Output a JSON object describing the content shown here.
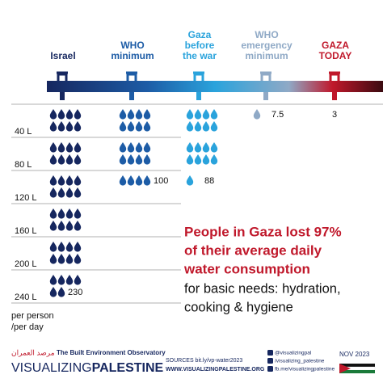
{
  "chart_data": {
    "type": "pictogram",
    "categories": [
      [
        "Israel"
      ],
      [
        "WHO",
        "minimum"
      ],
      [
        "Gaza",
        "before",
        "the war"
      ],
      [
        "WHO",
        "emergency",
        "minimum"
      ],
      [
        "GAZA",
        "TODAY"
      ]
    ],
    "values": [
      230,
      100,
      88,
      7.5,
      3
    ],
    "colors": [
      "#16275f",
      "#1d5ca6",
      "#2aa3dc",
      "#8fa9c6",
      "#c0182b"
    ],
    "ylim": [
      0,
      240
    ],
    "yticks": [
      {
        "value": 40,
        "label": "40 L"
      },
      {
        "value": 80,
        "label": "80 L"
      },
      {
        "value": 120,
        "label": "120 L"
      },
      {
        "value": 160,
        "label": "160 L"
      },
      {
        "value": 200,
        "label": "200 L"
      },
      {
        "value": 240,
        "label": "240 L"
      }
    ],
    "ylabel": [
      "per person",
      "/per day"
    ],
    "grid": true
  },
  "headline": {
    "highlight": [
      "People in Gaza lost 97%",
      "of their average daily",
      "water consumption"
    ],
    "body": [
      "for basic needs: hydration,",
      "cooking & hygiene"
    ]
  },
  "footer": {
    "arabic": "مرصد العمران",
    "observatory": "The Built Environment Observatory",
    "brand_light": "VISUALIZING",
    "brand_bold": "PALESTINE",
    "sources": "SOURCES bit.ly/vp-water2023",
    "website": "WWW.VISUALIZINGPALESTINE.ORG",
    "social": [
      "@visualizingpal",
      "/visualizing_palestine",
      "fb.me/visualizingpalestine"
    ],
    "date": "NOV 2023"
  }
}
